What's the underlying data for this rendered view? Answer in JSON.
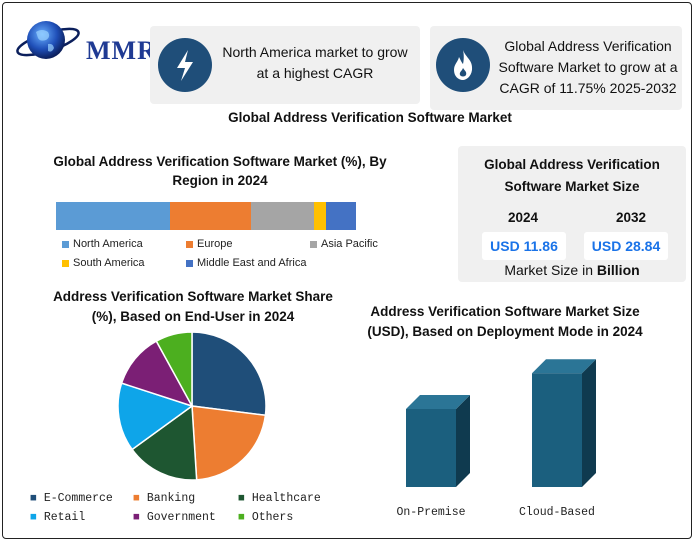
{
  "logo": {
    "text": "MMR"
  },
  "cards": {
    "north_america": {
      "icon": "lightning-icon",
      "text": "North America market to grow at a highest CAGR"
    },
    "growth": {
      "icon": "flame-icon",
      "text": "Global Address Verification Software Market to grow at a CAGR of 11.75% 2025-2032"
    }
  },
  "main_title": "Global Address Verification Software Market",
  "market_size": {
    "title": "Global Address Verification Software Market Size",
    "year1": "2024",
    "year2": "2032",
    "value1": "USD 11.86",
    "value2": "USD 28.84",
    "footer_pre": "Market Size in ",
    "footer_bold": "Billion"
  },
  "chart_data": [
    {
      "type": "bar",
      "title": "Global Address Verification Software Market (%), By Region in 2024",
      "orientation": "stacked-horizontal",
      "series": [
        {
          "name": "North America",
          "value": 38,
          "color": "#5b9bd5"
        },
        {
          "name": "Europe",
          "value": 27,
          "color": "#ed7d31"
        },
        {
          "name": "Asia Pacific",
          "value": 21,
          "color": "#a5a5a5"
        },
        {
          "name": "South America",
          "value": 4,
          "color": "#ffc000"
        },
        {
          "name": "Middle East and Africa",
          "value": 10,
          "color": "#4472c4"
        }
      ]
    },
    {
      "type": "pie",
      "title": "Address Verification Software Market Share (%), Based on  End-User in 2024",
      "slices": [
        {
          "name": "E-Commerce",
          "value": 27,
          "color": "#1f4e79"
        },
        {
          "name": "Banking",
          "value": 22,
          "color": "#ed7d31"
        },
        {
          "name": "Healthcare",
          "value": 16,
          "color": "#1e5631"
        },
        {
          "name": "Retail",
          "value": 15,
          "color": "#0ea5e9"
        },
        {
          "name": "Government",
          "value": 12,
          "color": "#7b1f75"
        },
        {
          "name": "Others",
          "value": 8,
          "color": "#4caf1f"
        }
      ]
    },
    {
      "type": "bar",
      "title": "Address Verification Software Market Size (USD), Based on Deployment Mode in 2024",
      "categories": [
        "On-Premise",
        "Cloud-Based"
      ],
      "values": [
        4.8,
        7.0
      ],
      "ylim": [
        0,
        8
      ]
    }
  ]
}
